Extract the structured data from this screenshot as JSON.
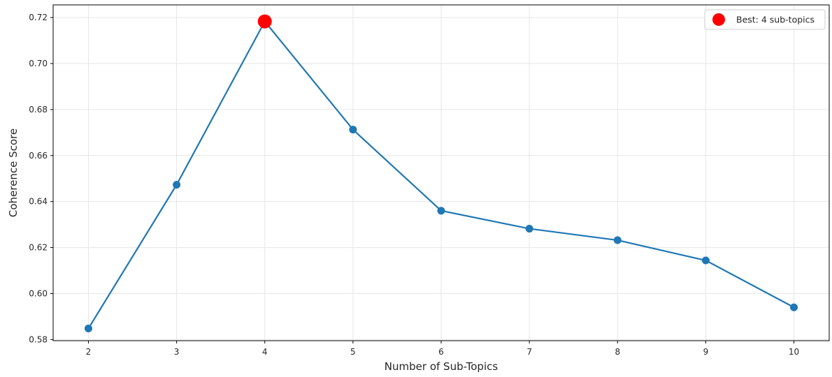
{
  "chart_data": {
    "type": "line",
    "xlabel": "Number of Sub-Topics",
    "ylabel": "Coherence Score",
    "x": [
      2,
      3,
      4,
      5,
      6,
      7,
      8,
      9,
      10
    ],
    "series": [
      {
        "values": [
          0.5848,
          0.6473,
          0.7183,
          0.6713,
          0.636,
          0.6282,
          0.6232,
          0.6144,
          0.594
        ],
        "color": "#1f77b4"
      }
    ],
    "highlight": {
      "x": 4,
      "y": 0.7183,
      "color": "#ff0000"
    },
    "legend": {
      "entries": [
        "Best: 4 sub-topics"
      ],
      "placement": "top-right"
    },
    "xticks": [
      2,
      3,
      4,
      5,
      6,
      7,
      8,
      9,
      10
    ],
    "yticks": [
      "0.58",
      "0.60",
      "0.62",
      "0.64",
      "0.66",
      "0.68",
      "0.70",
      "0.72"
    ],
    "xlim": [
      1.6,
      10.4
    ],
    "ylim": [
      0.5795,
      0.7255
    ],
    "grid": true
  }
}
